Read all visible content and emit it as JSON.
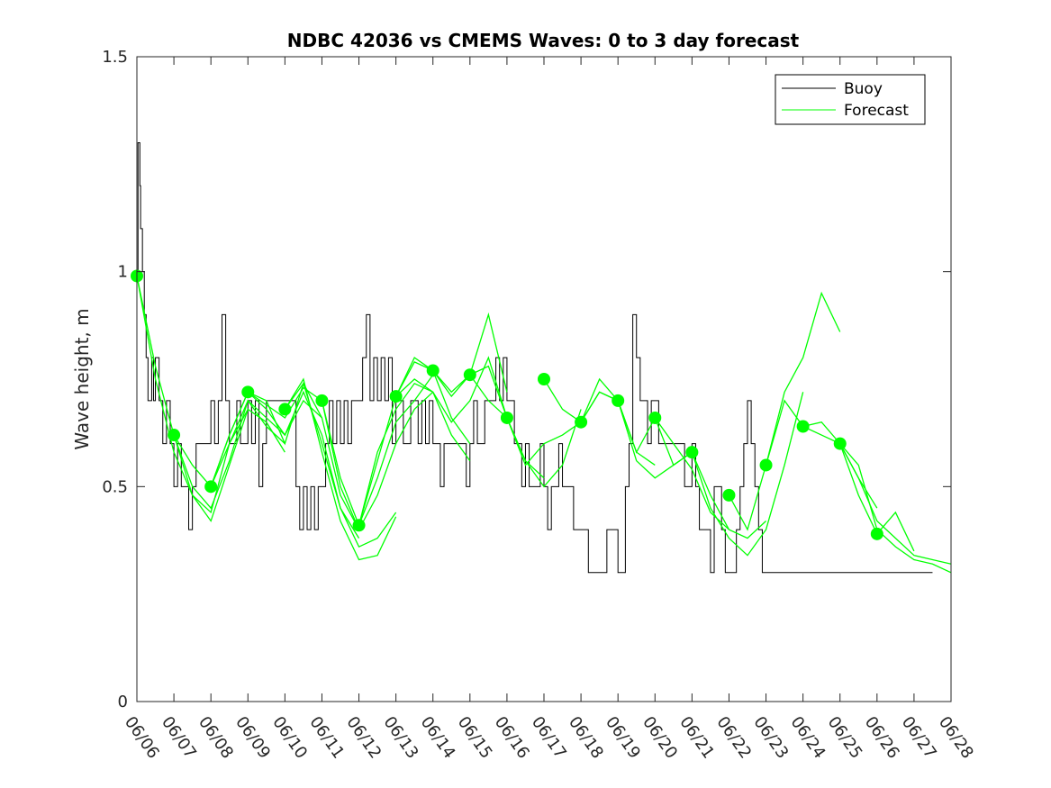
{
  "chart_data": {
    "type": "line",
    "title": "NDBC 42036 vs CMEMS Waves: 0 to 3 day forecast",
    "xlabel": "",
    "ylabel": "Wave height, m",
    "xlim": [
      0,
      22
    ],
    "ylim": [
      0,
      1.5
    ],
    "x_tick_labels": [
      "06/06",
      "06/07",
      "06/08",
      "06/09",
      "06/10",
      "06/11",
      "06/12",
      "06/13",
      "06/14",
      "06/15",
      "06/16",
      "06/17",
      "06/18",
      "06/19",
      "06/20",
      "06/21",
      "06/22",
      "06/23",
      "06/24",
      "06/25",
      "06/26",
      "06/27",
      "06/28"
    ],
    "y_ticks": [
      0,
      0.5,
      1,
      1.5
    ],
    "y_tick_labels": [
      "0",
      "0.5",
      "1",
      "1.5"
    ],
    "grid": false,
    "legend_position": "top-right",
    "legend": [
      {
        "label": "Buoy",
        "color": "#000000"
      },
      {
        "label": "Forecast",
        "color": "#00ff00"
      }
    ],
    "colors": {
      "buoy": "#000000",
      "forecast": "#00ff00"
    },
    "buoy": {
      "name": "Buoy",
      "x": [
        0,
        0.03,
        0.08,
        0.1,
        0.15,
        0.2,
        0.25,
        0.3,
        0.4,
        0.45,
        0.5,
        0.6,
        0.7,
        0.8,
        0.9,
        1.0,
        1.1,
        1.2,
        1.3,
        1.4,
        1.5,
        1.6,
        1.7,
        1.8,
        1.9,
        2.0,
        2.1,
        2.2,
        2.3,
        2.4,
        2.5,
        2.6,
        2.7,
        2.8,
        2.9,
        3.0,
        3.1,
        3.2,
        3.3,
        3.4,
        3.5,
        3.6,
        3.7,
        3.8,
        3.9,
        4.0,
        4.1,
        4.2,
        4.3,
        4.4,
        4.5,
        4.6,
        4.7,
        4.8,
        4.9,
        5.0,
        5.1,
        5.2,
        5.3,
        5.4,
        5.5,
        5.6,
        5.7,
        5.8,
        5.9,
        6.0,
        6.1,
        6.2,
        6.3,
        6.4,
        6.5,
        6.6,
        6.7,
        6.8,
        6.9,
        7.0,
        7.1,
        7.2,
        7.3,
        7.4,
        7.5,
        7.6,
        7.7,
        7.8,
        7.9,
        8.0,
        8.1,
        8.2,
        8.3,
        8.4,
        8.5,
        8.6,
        8.7,
        8.8,
        8.9,
        9.0,
        9.1,
        9.2,
        9.3,
        9.4,
        9.5,
        9.6,
        9.7,
        9.8,
        9.9,
        10.0,
        10.1,
        10.2,
        10.3,
        10.4,
        10.5,
        10.6,
        10.7,
        10.8,
        10.9,
        11.0,
        11.1,
        11.2,
        11.3,
        11.4,
        11.5,
        11.6,
        11.7,
        11.8,
        11.9,
        12.0,
        12.1,
        12.2,
        12.3,
        12.4,
        12.5,
        12.6,
        12.7,
        12.8,
        12.9,
        13.0,
        13.1,
        13.2,
        13.3,
        13.4,
        13.5,
        13.6,
        13.7,
        13.8,
        13.9,
        14.0,
        14.1,
        14.2,
        14.3,
        14.4,
        14.5,
        14.6,
        14.7,
        14.8,
        14.9,
        15.0,
        15.1,
        15.2,
        15.3,
        15.4,
        15.5,
        15.6,
        15.7,
        15.8,
        15.9,
        16.0,
        16.1,
        16.2,
        16.3,
        16.4,
        16.5,
        16.6,
        16.7,
        16.8,
        16.9,
        17.0,
        17.1,
        17.2,
        17.3,
        17.4,
        17.5,
        17.6,
        17.7,
        17.8,
        17.9,
        18.0,
        18.1,
        18.2,
        18.3,
        18.4,
        18.5,
        18.6,
        18.7,
        18.8,
        18.9,
        19.0,
        19.1,
        19.2,
        19.3,
        19.4,
        19.5,
        19.6,
        19.7,
        19.8,
        19.9,
        20.0,
        20.1,
        20.2,
        20.3,
        20.4,
        20.5,
        20.6,
        20.7,
        20.8,
        20.9,
        21.0,
        21.1,
        21.2,
        21.3,
        21.4,
        21.5
      ],
      "y": [
        1.0,
        1.3,
        1.2,
        1.1,
        1.0,
        0.9,
        0.8,
        0.7,
        0.8,
        0.7,
        0.8,
        0.7,
        0.6,
        0.7,
        0.6,
        0.5,
        0.6,
        0.5,
        0.5,
        0.4,
        0.5,
        0.6,
        0.6,
        0.6,
        0.6,
        0.7,
        0.6,
        0.7,
        0.9,
        0.7,
        0.6,
        0.6,
        0.7,
        0.6,
        0.6,
        0.7,
        0.6,
        0.7,
        0.5,
        0.6,
        0.7,
        0.7,
        0.7,
        0.7,
        0.7,
        0.7,
        0.7,
        0.7,
        0.5,
        0.4,
        0.5,
        0.4,
        0.5,
        0.4,
        0.5,
        0.5,
        0.6,
        0.7,
        0.6,
        0.7,
        0.6,
        0.7,
        0.6,
        0.7,
        0.7,
        0.7,
        0.8,
        0.9,
        0.7,
        0.8,
        0.7,
        0.8,
        0.7,
        0.8,
        0.6,
        0.7,
        0.7,
        0.6,
        0.6,
        0.7,
        0.7,
        0.6,
        0.7,
        0.6,
        0.7,
        0.6,
        0.6,
        0.5,
        0.6,
        0.6,
        0.6,
        0.6,
        0.6,
        0.6,
        0.5,
        0.6,
        0.7,
        0.6,
        0.6,
        0.7,
        0.7,
        0.7,
        0.8,
        0.7,
        0.8,
        0.7,
        0.7,
        0.6,
        0.6,
        0.5,
        0.6,
        0.5,
        0.5,
        0.5,
        0.6,
        0.5,
        0.4,
        0.5,
        0.5,
        0.6,
        0.5,
        0.5,
        0.5,
        0.4,
        0.4,
        0.4,
        0.4,
        0.3,
        0.3,
        0.3,
        0.3,
        0.3,
        0.4,
        0.4,
        0.4,
        0.3,
        0.3,
        0.5,
        0.6,
        0.9,
        0.8,
        0.7,
        0.7,
        0.6,
        0.7,
        0.7,
        0.6,
        0.6,
        0.6,
        0.6,
        0.6,
        0.6,
        0.6,
        0.5,
        0.5,
        0.6,
        0.5,
        0.4,
        0.4,
        0.4,
        0.3,
        0.5,
        0.5,
        0.4,
        0.3,
        0.3,
        0.3,
        0.4,
        0.5,
        0.6,
        0.7,
        0.6,
        0.5,
        0.4,
        0.3,
        0.3,
        0.3,
        0.3,
        0.3,
        0.3,
        0.3,
        0.3,
        0.3,
        0.3,
        0.3,
        0.3,
        0.3,
        0.3,
        0.3,
        0.3,
        0.3,
        0.3,
        0.3,
        0.3,
        0.3,
        0.3,
        0.3,
        0.3,
        0.3,
        0.3,
        0.3,
        0.3,
        0.3,
        0.3,
        0.3,
        0.3,
        0.3,
        0.3,
        0.3,
        0.3,
        0.3,
        0.3,
        0.3,
        0.3,
        0.3,
        0.3,
        0.3,
        0.3,
        0.3,
        0.3,
        0.3
      ]
    },
    "forecast_runs": [
      {
        "name": "Forecast",
        "x": [
          0,
          0.5,
          1,
          1.5,
          2,
          2.5,
          3
        ],
        "y": [
          0.99,
          0.78,
          0.62,
          0.55,
          0.5,
          0.62,
          0.72
        ]
      },
      {
        "name": "Forecast",
        "x": [
          0,
          0.5,
          1,
          1.5,
          2,
          2.5,
          3
        ],
        "y": [
          0.99,
          0.75,
          0.58,
          0.48,
          0.42,
          0.55,
          0.68
        ]
      },
      {
        "name": "Forecast",
        "x": [
          1,
          1.5,
          2,
          2.5,
          3,
          3.5,
          4
        ],
        "y": [
          0.62,
          0.5,
          0.45,
          0.56,
          0.7,
          0.64,
          0.6
        ]
      },
      {
        "name": "Forecast",
        "x": [
          1,
          1.5,
          2,
          2.5,
          3,
          3.5,
          4
        ],
        "y": [
          0.62,
          0.48,
          0.44,
          0.6,
          0.68,
          0.65,
          0.58
        ]
      },
      {
        "name": "Forecast",
        "x": [
          2,
          2.5,
          3,
          3.5,
          4,
          4.5,
          5
        ],
        "y": [
          0.5,
          0.62,
          0.72,
          0.69,
          0.66,
          0.73,
          0.7
        ]
      },
      {
        "name": "Forecast",
        "x": [
          2,
          2.5,
          3,
          3.5,
          4,
          4.5,
          5
        ],
        "y": [
          0.5,
          0.6,
          0.7,
          0.66,
          0.62,
          0.7,
          0.66
        ]
      },
      {
        "name": "Forecast",
        "x": [
          3,
          3.5,
          4,
          4.5,
          5,
          5.5,
          6
        ],
        "y": [
          0.72,
          0.68,
          0.62,
          0.72,
          0.62,
          0.45,
          0.38
        ]
      },
      {
        "name": "Forecast",
        "x": [
          3,
          3.5,
          4,
          4.5,
          5,
          5.5,
          6
        ],
        "y": [
          0.72,
          0.7,
          0.6,
          0.74,
          0.66,
          0.48,
          0.4
        ]
      },
      {
        "name": "Forecast",
        "x": [
          4,
          4.5,
          5,
          5.5,
          6,
          6.5,
          7
        ],
        "y": [
          0.68,
          0.75,
          0.58,
          0.42,
          0.33,
          0.34,
          0.43
        ]
      },
      {
        "name": "Forecast",
        "x": [
          4,
          4.5,
          5,
          5.5,
          6,
          6.5,
          7
        ],
        "y": [
          0.68,
          0.74,
          0.6,
          0.45,
          0.36,
          0.38,
          0.44
        ]
      },
      {
        "name": "Forecast",
        "x": [
          5,
          5.5,
          6,
          6.5,
          7,
          7.5,
          8
        ],
        "y": [
          0.7,
          0.52,
          0.41,
          0.52,
          0.65,
          0.7,
          0.76
        ]
      },
      {
        "name": "Forecast",
        "x": [
          5,
          5.5,
          6,
          6.5,
          7,
          7.5,
          8
        ],
        "y": [
          0.7,
          0.5,
          0.4,
          0.48,
          0.6,
          0.68,
          0.72
        ]
      },
      {
        "name": "Forecast",
        "x": [
          6,
          6.5,
          7,
          7.5,
          8,
          8.5,
          9
        ],
        "y": [
          0.41,
          0.56,
          0.71,
          0.8,
          0.77,
          0.66,
          0.6
        ]
      },
      {
        "name": "Forecast",
        "x": [
          6,
          6.5,
          7,
          7.5,
          8,
          8.5,
          9
        ],
        "y": [
          0.41,
          0.58,
          0.68,
          0.74,
          0.72,
          0.62,
          0.56
        ]
      },
      {
        "name": "Forecast",
        "x": [
          7,
          7.5,
          8,
          8.5,
          9,
          9.5,
          10
        ],
        "y": [
          0.71,
          0.79,
          0.77,
          0.71,
          0.76,
          0.9,
          0.72
        ]
      },
      {
        "name": "Forecast",
        "x": [
          7,
          7.5,
          8,
          8.5,
          9,
          9.5,
          10
        ],
        "y": [
          0.71,
          0.75,
          0.72,
          0.65,
          0.7,
          0.8,
          0.66
        ]
      },
      {
        "name": "Forecast",
        "x": [
          8,
          8.5,
          9,
          9.5,
          10,
          10.5,
          11
        ],
        "y": [
          0.77,
          0.72,
          0.76,
          0.78,
          0.66,
          0.56,
          0.52
        ]
      },
      {
        "name": "Forecast",
        "x": [
          9,
          9.5,
          10,
          10.5,
          11,
          11.5,
          12
        ],
        "y": [
          0.76,
          0.7,
          0.66,
          0.56,
          0.5,
          0.55,
          0.68
        ]
      },
      {
        "name": "Forecast",
        "x": [
          10,
          10.5,
          11,
          11.5,
          12,
          12.5,
          13
        ],
        "y": [
          0.66,
          0.55,
          0.6,
          0.62,
          0.65,
          0.72,
          0.7
        ]
      },
      {
        "name": "Forecast",
        "x": [
          11,
          11.5,
          12,
          12.5,
          13,
          13.5,
          14
        ],
        "y": [
          0.75,
          0.68,
          0.65,
          0.72,
          0.7,
          0.58,
          0.55
        ]
      },
      {
        "name": "Forecast",
        "x": [
          12,
          12.5,
          13,
          13.5,
          14,
          14.5,
          15
        ],
        "y": [
          0.65,
          0.75,
          0.7,
          0.56,
          0.52,
          0.55,
          0.58
        ]
      },
      {
        "name": "Forecast",
        "x": [
          13,
          13.5,
          14,
          14.5,
          15,
          15.5,
          16
        ],
        "y": [
          0.7,
          0.58,
          0.66,
          0.6,
          0.54,
          0.44,
          0.4
        ]
      },
      {
        "name": "Forecast",
        "x": [
          14,
          14.5,
          15,
          15.5,
          16,
          16.5,
          17
        ],
        "y": [
          0.66,
          0.55,
          0.58,
          0.48,
          0.4,
          0.38,
          0.42
        ]
      },
      {
        "name": "Forecast",
        "x": [
          15,
          15.5,
          16,
          16.5,
          17,
          17.5,
          18
        ],
        "y": [
          0.58,
          0.45,
          0.38,
          0.34,
          0.4,
          0.55,
          0.72
        ]
      },
      {
        "name": "Forecast",
        "x": [
          16,
          16.5,
          17,
          17.5,
          18,
          18.5,
          19
        ],
        "y": [
          0.48,
          0.4,
          0.55,
          0.72,
          0.8,
          0.95,
          0.86
        ]
      },
      {
        "name": "Forecast",
        "x": [
          17,
          17.5,
          18,
          18.5,
          19,
          19.5,
          20
        ],
        "y": [
          0.55,
          0.7,
          0.64,
          0.65,
          0.6,
          0.52,
          0.45
        ]
      },
      {
        "name": "Forecast",
        "x": [
          18,
          18.5,
          19,
          19.5,
          20,
          20.5,
          21
        ],
        "y": [
          0.64,
          0.62,
          0.6,
          0.48,
          0.39,
          0.44,
          0.35
        ]
      },
      {
        "name": "Forecast",
        "x": [
          19,
          19.5,
          20,
          20.5,
          21,
          21.5,
          22
        ],
        "y": [
          0.6,
          0.55,
          0.4,
          0.36,
          0.33,
          0.32,
          0.3
        ]
      },
      {
        "name": "Forecast",
        "x": [
          19,
          19.5,
          20,
          20.5,
          21,
          21.5,
          22
        ],
        "y": [
          0.6,
          0.52,
          0.42,
          0.38,
          0.34,
          0.33,
          0.32
        ]
      }
    ],
    "forecast_start_points": {
      "x": [
        0,
        1,
        2,
        3,
        4,
        5,
        6,
        7,
        8,
        9,
        10,
        11,
        12,
        13,
        14,
        15,
        16,
        17,
        18,
        19,
        20
      ],
      "y": [
        0.99,
        0.62,
        0.5,
        0.72,
        0.68,
        0.7,
        0.41,
        0.71,
        0.77,
        0.76,
        0.66,
        0.75,
        0.65,
        0.7,
        0.66,
        0.58,
        0.48,
        0.55,
        0.64,
        0.6,
        0.39
      ]
    }
  }
}
